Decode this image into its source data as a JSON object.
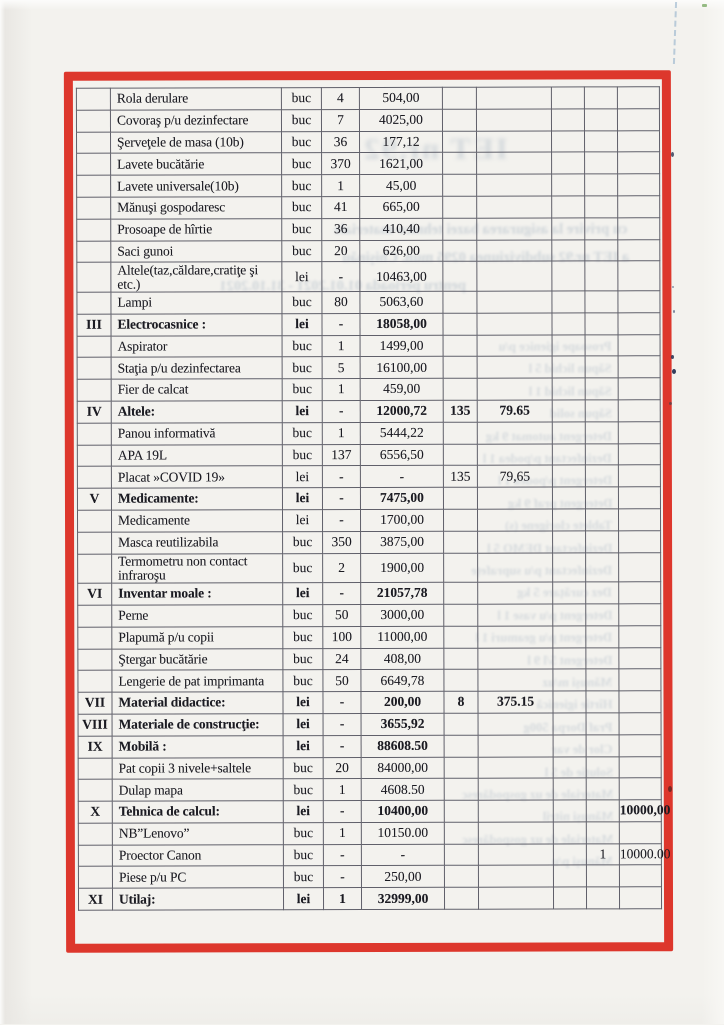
{
  "frame": {
    "color": "#dd372c"
  },
  "table": {
    "rows": [
      {
        "name": "Rola derulare",
        "unit": "buc",
        "qty": "4",
        "sum": "504,00"
      },
      {
        "name": "Covoraş p/u dezinfectare",
        "unit": "buc",
        "qty": "7",
        "sum": "4025,00"
      },
      {
        "name": "Şerveţele de masa (10b)",
        "unit": "buc",
        "qty": "36",
        "sum": "177,12"
      },
      {
        "name": "Lavete bucătărie",
        "unit": "buc",
        "qty": "370",
        "sum": "1621,00"
      },
      {
        "name": "Lavete universale(10b)",
        "unit": "buc",
        "qty": "1",
        "sum": "45,00"
      },
      {
        "name": "Mănuşi gospodaresc",
        "unit": "buc",
        "qty": "41",
        "sum": "665,00"
      },
      {
        "name": "Prosoape de hîrtie",
        "unit": "buc",
        "qty": "36",
        "sum": "410,40"
      },
      {
        "name": "Saci gunoi",
        "unit": "buc",
        "qty": "20",
        "sum": "626,00"
      },
      {
        "name": "Altele(taz,căldare,cratiţe şi etc.)",
        "unit": "lei",
        "qty": "-",
        "sum": "10463,00",
        "tall": true
      },
      {
        "name": "Lampi",
        "unit": "buc",
        "qty": "80",
        "sum": "5063,60"
      },
      {
        "no": "III",
        "name": "Electrocasnice :",
        "unit": "lei",
        "qty": "-",
        "sum": "18058,00",
        "bold": true
      },
      {
        "name": "Aspirator",
        "unit": "buc",
        "qty": "1",
        "sum": "1499,00"
      },
      {
        "name": "Staţia p/u dezinfectarea",
        "unit": "buc",
        "qty": "5",
        "sum": "16100,00"
      },
      {
        "name": "Fier de calcat",
        "unit": "buc",
        "qty": "1",
        "sum": "459,00"
      },
      {
        "no": "IV",
        "name": "Altele:",
        "unit": "lei",
        "qty": "-",
        "sum": "12000,72",
        "qty2": "135",
        "sum2": "79.65",
        "bold": true
      },
      {
        "name": "Panou informativă",
        "unit": "buc",
        "qty": "1",
        "sum": "5444,22"
      },
      {
        "name": "APA 19L",
        "unit": "buc",
        "qty": "137",
        "sum": "6556,50"
      },
      {
        "name": "Placat »COVID 19»",
        "unit": "lei",
        "qty": "-",
        "sum": "-",
        "qty2": "135",
        "sum2": "79,65"
      },
      {
        "no": "V",
        "name": "Medicamente:",
        "unit": "lei",
        "qty": "-",
        "sum": "7475,00",
        "bold": true
      },
      {
        "name": "Medicamente",
        "unit": "lei",
        "qty": "-",
        "sum": "1700,00"
      },
      {
        "name": "Masca reutilizabila",
        "unit": "buc",
        "qty": "350",
        "sum": "3875,00"
      },
      {
        "name": "Termometru non contact infraroşu",
        "unit": "buc",
        "qty": "2",
        "sum": "1900,00",
        "tall": true
      },
      {
        "no": "VI",
        "name": "Inventar  moale :",
        "unit": "lei",
        "qty": "-",
        "sum": "21057,78",
        "bold": true
      },
      {
        "name": "Perne",
        "unit": "buc",
        "qty": "50",
        "sum": "3000,00"
      },
      {
        "name": "Plapumă p/u copii",
        "unit": "buc",
        "qty": "100",
        "sum": "11000,00"
      },
      {
        "name": "Ştergar bucătărie",
        "unit": "buc",
        "qty": "24",
        "sum": "408,00"
      },
      {
        "name": "Lengerie de pat imprimanta",
        "unit": "buc",
        "qty": "50",
        "sum": "6649,78"
      },
      {
        "no": "VII",
        "name": "Material didactice:",
        "unit": "lei",
        "qty": "-",
        "sum": "200,00",
        "qty2": "8",
        "sum2": "375.15",
        "bold": true
      },
      {
        "no": "VIII",
        "name": "Materiale de construcţie:",
        "unit": "lei",
        "qty": "-",
        "sum": "3655,92",
        "bold": true
      },
      {
        "no": "IX",
        "name": "Mobilă :",
        "unit": "lei",
        "qty": "-",
        "sum": "88608.50",
        "bold": true
      },
      {
        "name": "Pat copii 3 nivele+saltele",
        "unit": "buc",
        "qty": "20",
        "sum": "84000,00"
      },
      {
        "name": "Dulap mapa",
        "unit": "buc",
        "qty": "1",
        "sum": "4608.50"
      },
      {
        "no": "X",
        "name": "Tehnica de calcul:",
        "unit": "lei",
        "qty": "-",
        "sum": "10400,00",
        "c10": "10000,00",
        "bold": true
      },
      {
        "name": "NB”Lenovo”",
        "unit": "buc",
        "qty": "1",
        "sum": "10150.00"
      },
      {
        "name": "Proector Canon",
        "unit": "buc",
        "qty": "-",
        "sum": "-",
        "c9": "1",
        "c10": "10000.00"
      },
      {
        "name": "Piese p/u PC",
        "unit": "buc",
        "qty": "-",
        "sum": "250,00"
      },
      {
        "no": "XI",
        "name": "Utilaj:",
        "unit": "lei",
        "qty": "1",
        "sum": "32999,00",
        "bold": true
      }
    ]
  },
  "ghost": {
    "title": "IET nr.92",
    "lines": [
      "cu privire la asigurarea bazei tehnico-materiale",
      "a IET nr.92 subdiviziunea 0295 mun. Chişinău",
      "pentru perioada 01.01.2021 - 31.10.2021"
    ],
    "fragments": [
      "Prosoape igienice p/u",
      "Săpun lichid 5 l",
      "Săpun lichid 1 l",
      "Săpun solid",
      "Detergent automat 9 kg",
      "Dezinfectant p/podea 1 l",
      "Detergent p/podea 1 l",
      "Detergent praf 9 kg",
      "Tablete clorigene (s)",
      "Dezinfectant DEMO 5 l",
      "Dezinfectant p/u suprafeţe",
      "Dez curăţare 5 kg",
      "Detergent p/u vase 1 l",
      "Detergent p/u geamuri 1 l",
      "Detergent 5/l 9 l",
      "Mănuşi m/uz",
      "Hîrtie igienică",
      "Praf Dorpa 500g",
      "Clor de var",
      "Soluţie de 5 l",
      "Materiale de uz gospodăresc",
      "Mănuşi nitril",
      "Materiale de uz gospodăresc",
      "Mănuşi p/u"
    ]
  }
}
